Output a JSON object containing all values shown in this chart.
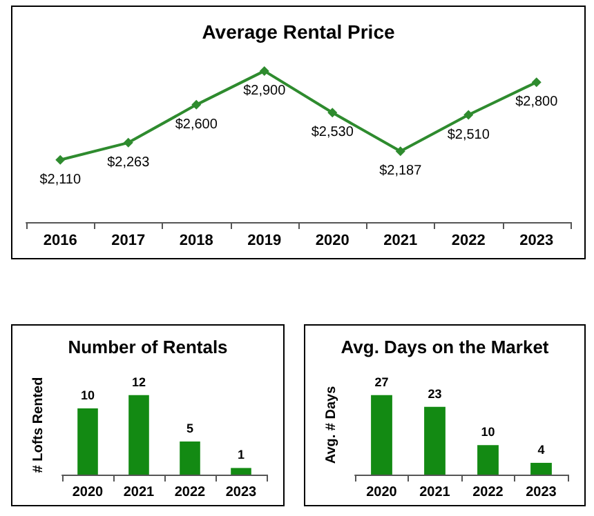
{
  "chart_data": [
    {
      "type": "line",
      "title": "Average Rental Price",
      "categories": [
        "2016",
        "2017",
        "2018",
        "2019",
        "2020",
        "2021",
        "2022",
        "2023"
      ],
      "color": "#2e8b2e",
      "marker": "diamond",
      "data_labels": true,
      "value_labels": [
        "$2,110",
        "$2,263",
        "$2,600",
        "$2,900",
        "$2,530",
        "$2,187",
        "$2,510",
        "$2,800"
      ],
      "values": [
        2110,
        2263,
        2600,
        2900,
        2530,
        2187,
        2510,
        2800
      ]
    },
    {
      "type": "bar",
      "title": "Number of Rentals",
      "ylabel": "# Lofts Rented",
      "categories": [
        "2020",
        "2021",
        "2022",
        "2023"
      ],
      "color": "#138a13",
      "data_labels": true,
      "values": [
        10,
        12,
        5,
        1
      ]
    },
    {
      "type": "bar",
      "title": "Avg. Days on the Market",
      "ylabel": "Avg. # Days",
      "categories": [
        "2020",
        "2021",
        "2022",
        "2023"
      ],
      "color": "#138a13",
      "data_labels": true,
      "values": [
        27,
        23,
        10,
        4
      ]
    }
  ]
}
